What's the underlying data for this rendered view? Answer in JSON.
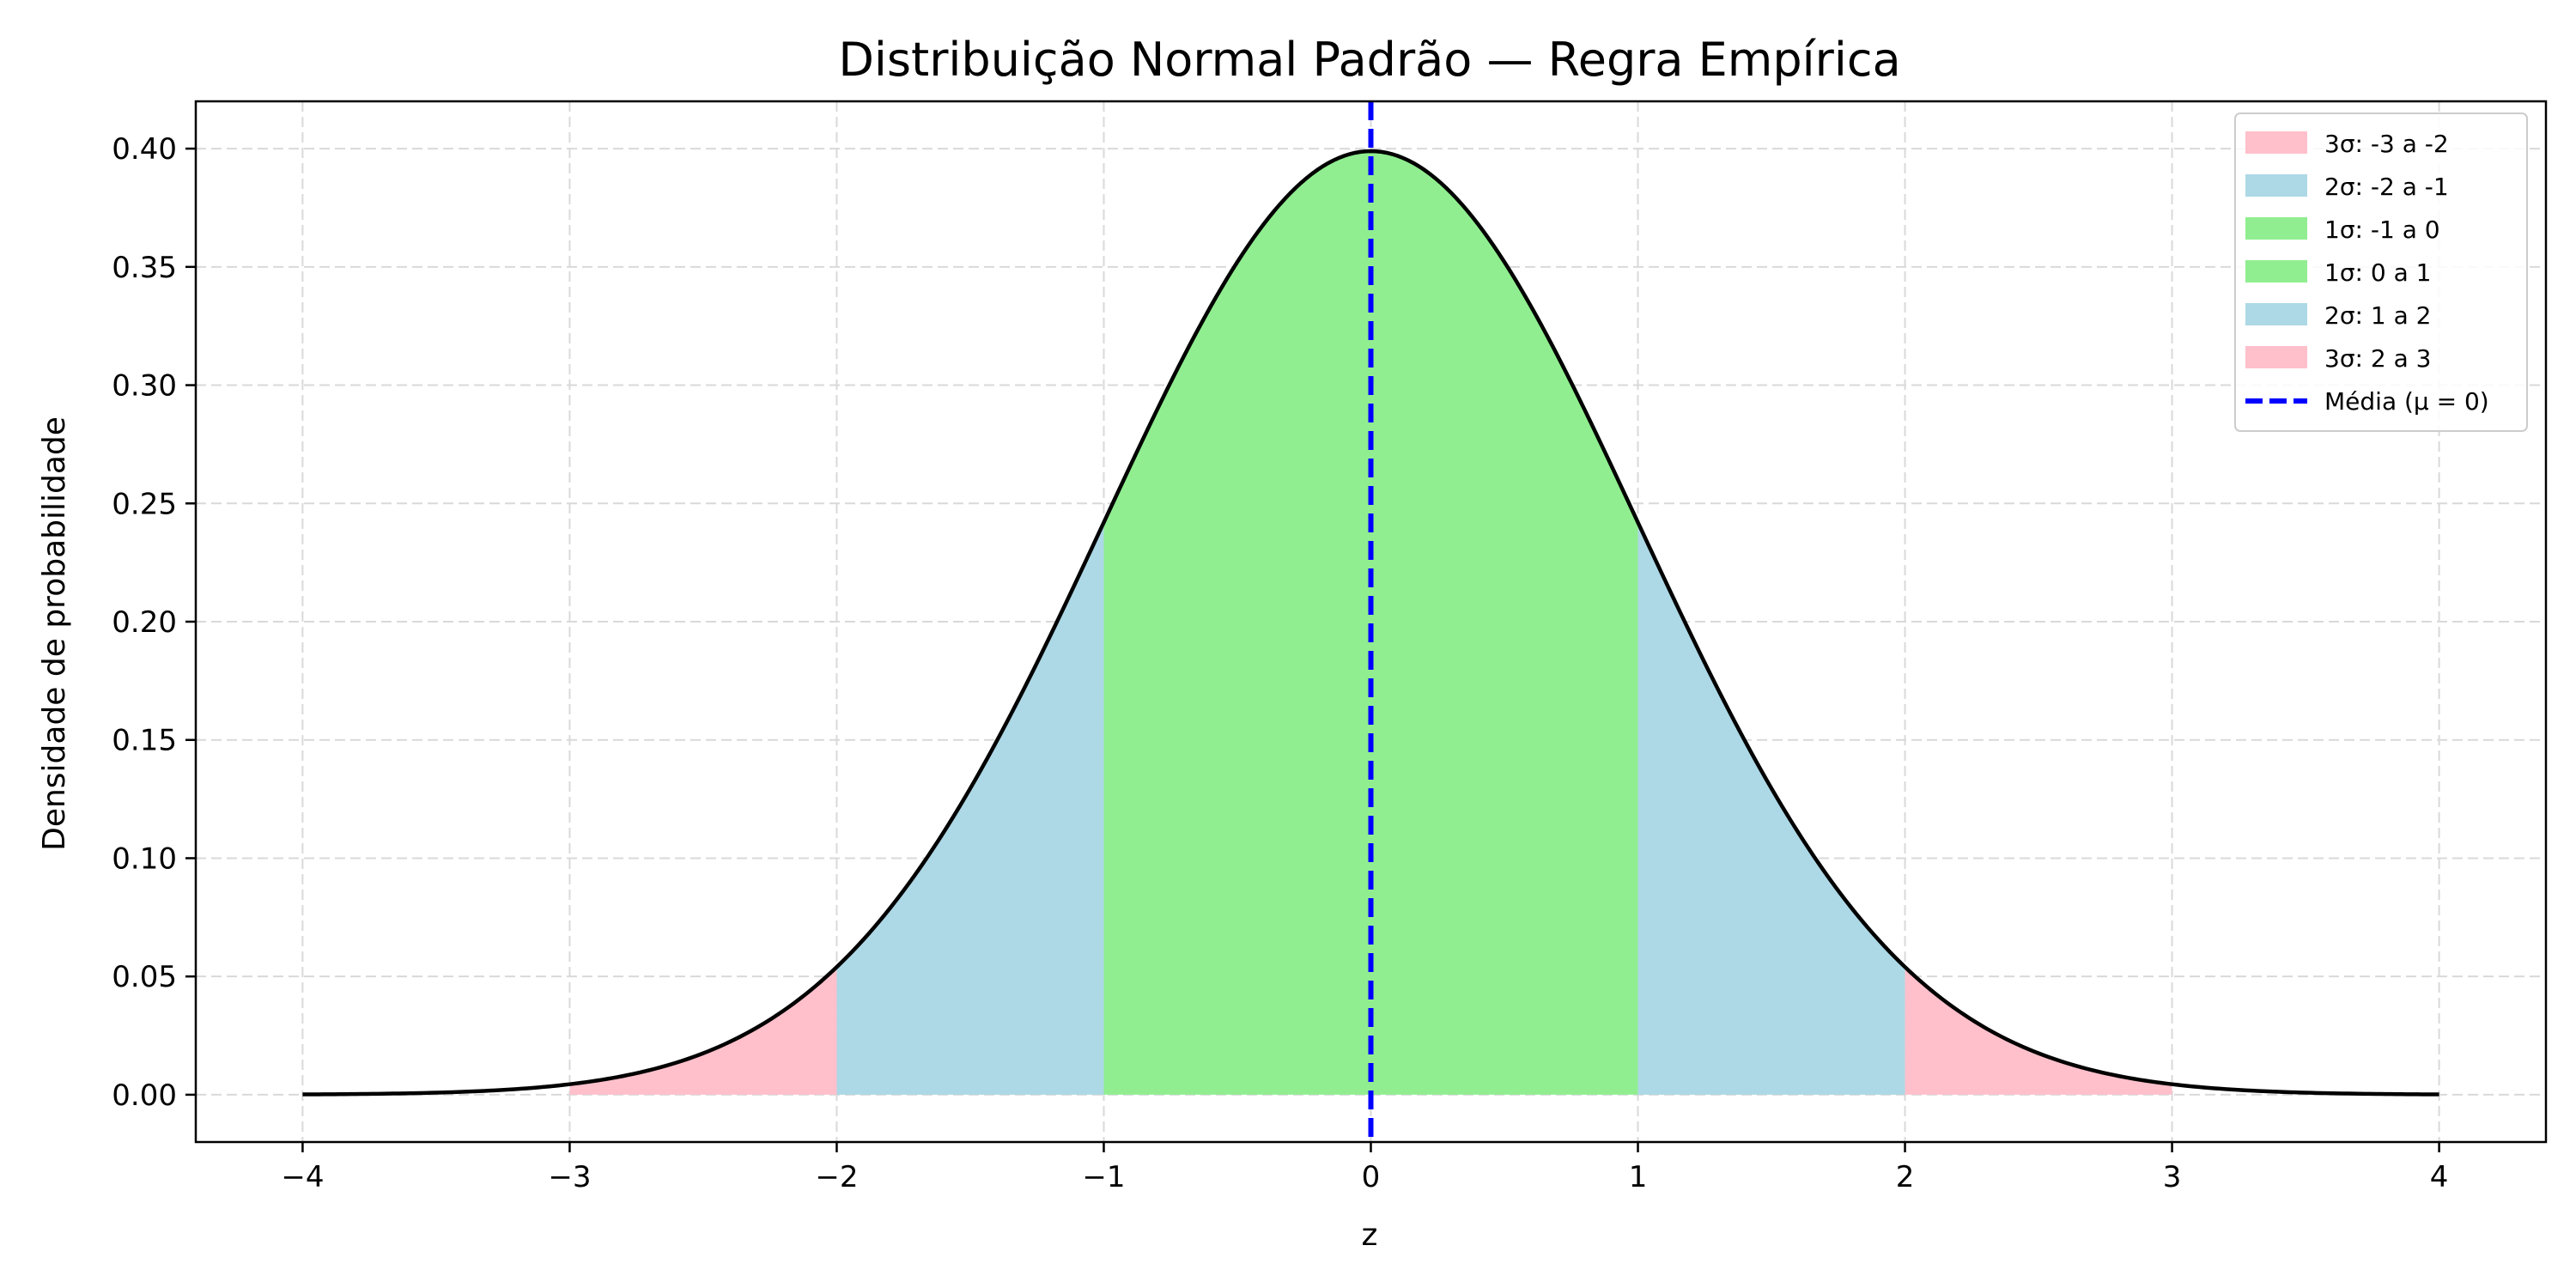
{
  "chart_data": {
    "type": "area",
    "title": "Distribuição Normal Padrão — Regra Empírica",
    "xlabel": "z",
    "ylabel": "Densidade de probabilidade",
    "xlim": [
      -4.4,
      4.4
    ],
    "ylim": [
      -0.02,
      0.42
    ],
    "x_ticks": [
      -4,
      -3,
      -2,
      -1,
      0,
      1,
      2,
      3,
      4
    ],
    "x_tick_labels": [
      "−4",
      "−3",
      "−2",
      "−1",
      "0",
      "1",
      "2",
      "3",
      "4"
    ],
    "y_ticks": [
      0.0,
      0.05,
      0.1,
      0.15,
      0.2,
      0.25,
      0.3,
      0.35,
      0.4
    ],
    "y_tick_labels": [
      "0.00",
      "0.05",
      "0.10",
      "0.15",
      "0.20",
      "0.25",
      "0.30",
      "0.35",
      "0.40"
    ],
    "grid": true,
    "legend_position": "top-right",
    "curve": {
      "name": "",
      "color": "#000000",
      "x_range": [
        -4,
        4
      ],
      "function": "standard normal pdf"
    },
    "regions": [
      {
        "name": "3σ: -3 a -2",
        "from": -3,
        "to": -2,
        "color": "#ffc0cb"
      },
      {
        "name": "2σ: -2 a -1",
        "from": -2,
        "to": -1,
        "color": "#add8e6"
      },
      {
        "name": "1σ: -1 a 0",
        "from": -1,
        "to": 0,
        "color": "#90ee90"
      },
      {
        "name": "1σ: 0 a 1",
        "from": 0,
        "to": 1,
        "color": "#90ee90"
      },
      {
        "name": "2σ: 1 a 2",
        "from": 1,
        "to": 2,
        "color": "#add8e6"
      },
      {
        "name": "3σ: 2 a 3",
        "from": 2,
        "to": 3,
        "color": "#ffc0cb"
      }
    ],
    "mean_line": {
      "name": "Média (μ = 0)",
      "x": 0,
      "color": "#0000ff",
      "style": "dashed"
    }
  }
}
